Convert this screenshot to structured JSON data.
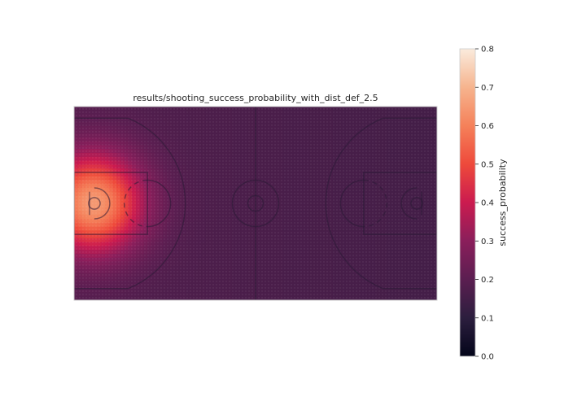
{
  "chart_data": {
    "type": "heatmap",
    "title": "results/shooting_success_probability_with_dist_def_2.5",
    "colorbar": {
      "label": "success_probability",
      "range": [
        0.0,
        0.8
      ],
      "ticks": [
        "0.0",
        "0.1",
        "0.2",
        "0.3",
        "0.4",
        "0.5",
        "0.6",
        "0.7",
        "0.8"
      ],
      "colormap": "rocket"
    },
    "court": {
      "length_ft": 94,
      "width_ft": 50,
      "overlay": "basketball half-court lines"
    },
    "field": {
      "description": "success probability over court positions",
      "hotspot": {
        "x_ft": 5,
        "y_ft": 25,
        "value": 0.65
      },
      "background_value": 0.18,
      "decay_ft": 9
    },
    "grid": false,
    "xticks": false,
    "yticks": false
  }
}
